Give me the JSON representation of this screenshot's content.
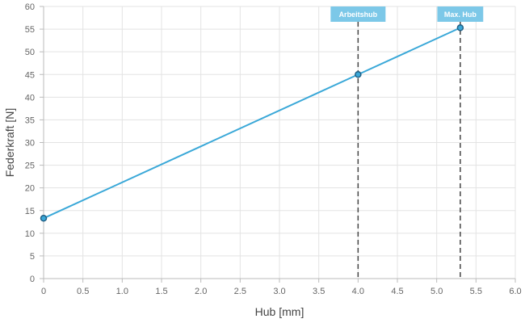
{
  "chart_data": {
    "type": "line",
    "title": "",
    "xlabel": "Hub [mm]",
    "ylabel": "Federkraft [N]",
    "xlim": [
      0,
      6.0
    ],
    "ylim": [
      0,
      60
    ],
    "x_ticks": [
      "0",
      "0.5",
      "1.0",
      "1.5",
      "2.0",
      "2.5",
      "3.0",
      "3.5",
      "4.0",
      "4.5",
      "5.0",
      "5.5",
      "6.0"
    ],
    "y_ticks": [
      "0",
      "5",
      "10",
      "15",
      "20",
      "25",
      "30",
      "35",
      "40",
      "45",
      "50",
      "55",
      "60"
    ],
    "grid": true,
    "series": [
      {
        "points": [
          {
            "x": 0,
            "y": 13.3
          },
          {
            "x": 4.0,
            "y": 45.0
          },
          {
            "x": 5.3,
            "y": 55.3
          }
        ],
        "color": "#3aa8d8"
      }
    ],
    "markers": [
      {
        "label": "Arbeitshub",
        "x": 4.0
      },
      {
        "label": "Max. Hub",
        "x": 5.3
      }
    ],
    "colors": {
      "line": "#3aa8d8",
      "marker_box": "#7cc8e8",
      "marker_line": "#444444",
      "grid": "#e3e3e3",
      "axis": "#bbbbbb"
    }
  }
}
